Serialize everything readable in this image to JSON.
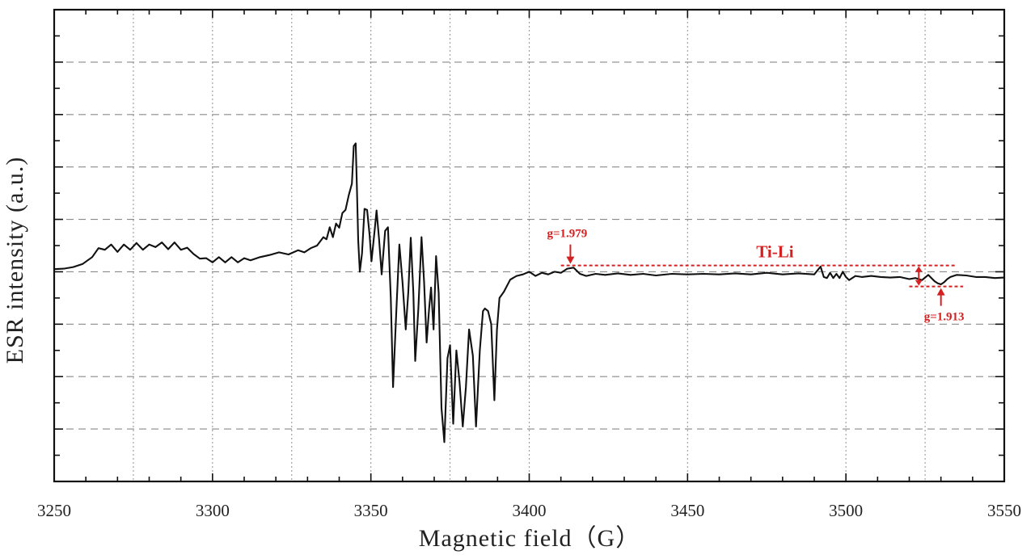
{
  "chart_data": {
    "type": "line",
    "xlabel": "Magnetic field（G）",
    "ylabel": "ESR intensity (a.u.)",
    "xlim": [
      3250,
      3550
    ],
    "ylim": [
      -4,
      5
    ],
    "xticks": [
      3250,
      3300,
      3350,
      3400,
      3450,
      3500,
      3550
    ],
    "x_minor_gridlines": [
      3275,
      3300,
      3325,
      3350,
      3375,
      3400,
      3450,
      3500,
      3525
    ],
    "y_dashed_gridlines": [
      -3,
      -2,
      -1,
      0,
      1,
      2,
      3,
      4
    ],
    "y_tick_labels_shown": false,
    "grid": true,
    "line_color": "#111111",
    "annotation_color": "#d42020",
    "series": [
      {
        "points": [
          [
            3250,
            0.05
          ],
          [
            3253,
            0.06
          ],
          [
            3256,
            0.09
          ],
          [
            3259,
            0.15
          ],
          [
            3262,
            0.28
          ],
          [
            3264,
            0.45
          ],
          [
            3266,
            0.42
          ],
          [
            3268,
            0.52
          ],
          [
            3270,
            0.38
          ],
          [
            3272,
            0.52
          ],
          [
            3274,
            0.42
          ],
          [
            3276,
            0.55
          ],
          [
            3278,
            0.42
          ],
          [
            3280,
            0.52
          ],
          [
            3282,
            0.47
          ],
          [
            3284,
            0.56
          ],
          [
            3286,
            0.43
          ],
          [
            3288,
            0.56
          ],
          [
            3290,
            0.42
          ],
          [
            3292,
            0.46
          ],
          [
            3294,
            0.34
          ],
          [
            3296,
            0.25
          ],
          [
            3298,
            0.26
          ],
          [
            3300,
            0.18
          ],
          [
            3302,
            0.28
          ],
          [
            3304,
            0.18
          ],
          [
            3306,
            0.28
          ],
          [
            3308,
            0.18
          ],
          [
            3310,
            0.26
          ],
          [
            3312,
            0.22
          ],
          [
            3315,
            0.28
          ],
          [
            3318,
            0.32
          ],
          [
            3321,
            0.37
          ],
          [
            3324,
            0.33
          ],
          [
            3327,
            0.41
          ],
          [
            3329,
            0.37
          ],
          [
            3331,
            0.45
          ],
          [
            3333,
            0.5
          ],
          [
            3335,
            0.66
          ],
          [
            3336,
            0.62
          ],
          [
            3337,
            0.85
          ],
          [
            3338,
            0.66
          ],
          [
            3339,
            0.92
          ],
          [
            3340,
            0.84
          ],
          [
            3341,
            1.12
          ],
          [
            3342,
            1.18
          ],
          [
            3343,
            1.46
          ],
          [
            3344,
            1.68
          ],
          [
            3344.6,
            2.4
          ],
          [
            3345.2,
            2.45
          ],
          [
            3345.6,
            1.6
          ],
          [
            3346,
            0.6
          ],
          [
            3346.5,
            0.0
          ],
          [
            3347.2,
            0.35
          ],
          [
            3348,
            1.2
          ],
          [
            3348.8,
            1.18
          ],
          [
            3349.6,
            0.7
          ],
          [
            3350.2,
            0.2
          ],
          [
            3351.2,
            0.8
          ],
          [
            3351.8,
            1.17
          ],
          [
            3352.6,
            0.62
          ],
          [
            3353.4,
            -0.05
          ],
          [
            3354.5,
            0.78
          ],
          [
            3355.4,
            0.85
          ],
          [
            3356.3,
            -0.5
          ],
          [
            3357,
            -2.2
          ],
          [
            3358,
            -0.8
          ],
          [
            3359,
            0.52
          ],
          [
            3360,
            -0.2
          ],
          [
            3361,
            -1.1
          ],
          [
            3361.8,
            -0.4
          ],
          [
            3362.6,
            0.65
          ],
          [
            3363.4,
            -0.4
          ],
          [
            3364,
            -1.7
          ],
          [
            3365,
            -0.7
          ],
          [
            3366,
            0.66
          ],
          [
            3366.8,
            -0.2
          ],
          [
            3367.6,
            -1.35
          ],
          [
            3368.4,
            -0.7
          ],
          [
            3369,
            -0.3
          ],
          [
            3369.8,
            -1.1
          ],
          [
            3370.6,
            0.3
          ],
          [
            3371.4,
            -0.4
          ],
          [
            3372.3,
            -2.6
          ],
          [
            3373.2,
            -3.25
          ],
          [
            3374.2,
            -1.65
          ],
          [
            3375,
            -1.4
          ],
          [
            3376,
            -2.9
          ],
          [
            3377,
            -1.5
          ],
          [
            3378,
            -2.1
          ],
          [
            3379,
            -2.95
          ],
          [
            3380,
            -2.2
          ],
          [
            3381,
            -1.1
          ],
          [
            3382.2,
            -1.6
          ],
          [
            3383.2,
            -2.95
          ],
          [
            3384.4,
            -1.5
          ],
          [
            3385.4,
            -0.75
          ],
          [
            3386,
            -0.7
          ],
          [
            3387,
            -0.75
          ],
          [
            3388,
            -1.0
          ],
          [
            3389,
            -2.45
          ],
          [
            3389.8,
            -1.1
          ],
          [
            3390.6,
            -0.5
          ],
          [
            3392,
            -0.38
          ],
          [
            3394,
            -0.15
          ],
          [
            3396,
            -0.08
          ],
          [
            3398,
            -0.05
          ],
          [
            3400,
            0.0
          ],
          [
            3402,
            -0.08
          ],
          [
            3404,
            -0.02
          ],
          [
            3406,
            -0.05
          ],
          [
            3408,
            0.0
          ],
          [
            3410,
            -0.02
          ],
          [
            3412,
            0.06
          ],
          [
            3414,
            0.08
          ],
          [
            3416,
            -0.04
          ],
          [
            3418,
            -0.08
          ],
          [
            3421,
            -0.04
          ],
          [
            3424,
            -0.06
          ],
          [
            3428,
            -0.03
          ],
          [
            3432,
            -0.06
          ],
          [
            3436,
            -0.04
          ],
          [
            3440,
            -0.07
          ],
          [
            3445,
            -0.04
          ],
          [
            3450,
            -0.05
          ],
          [
            3455,
            -0.04
          ],
          [
            3460,
            -0.05
          ],
          [
            3465,
            -0.03
          ],
          [
            3470,
            -0.05
          ],
          [
            3475,
            -0.02
          ],
          [
            3480,
            -0.05
          ],
          [
            3485,
            -0.03
          ],
          [
            3490,
            -0.05
          ],
          [
            3492,
            0.1
          ],
          [
            3493,
            -0.1
          ],
          [
            3494,
            -0.12
          ],
          [
            3495,
            -0.02
          ],
          [
            3496,
            -0.12
          ],
          [
            3497,
            -0.04
          ],
          [
            3498,
            -0.12
          ],
          [
            3499,
            0.0
          ],
          [
            3500,
            -0.1
          ],
          [
            3501,
            -0.16
          ],
          [
            3503,
            -0.08
          ],
          [
            3505,
            -0.1
          ],
          [
            3508,
            -0.08
          ],
          [
            3511,
            -0.1
          ],
          [
            3514,
            -0.11
          ],
          [
            3517,
            -0.1
          ],
          [
            3520,
            -0.14
          ],
          [
            3522,
            -0.12
          ],
          [
            3524,
            -0.16
          ],
          [
            3526,
            -0.06
          ],
          [
            3527,
            -0.12
          ],
          [
            3528,
            -0.18
          ],
          [
            3529,
            -0.22
          ],
          [
            3530,
            -0.24
          ],
          [
            3531,
            -0.2
          ],
          [
            3532,
            -0.14
          ],
          [
            3533,
            -0.1
          ],
          [
            3535,
            -0.06
          ],
          [
            3538,
            -0.07
          ],
          [
            3541,
            -0.1
          ],
          [
            3544,
            -0.1
          ],
          [
            3547,
            -0.12
          ],
          [
            3550,
            -0.11
          ]
        ]
      }
    ],
    "annotations": {
      "g_high_label": "g=1.979",
      "g_high_x": 3413,
      "g_low_label": "g=1.913",
      "g_low_x": 3530,
      "band_label": "Ti-Li",
      "band_x_range": [
        3410,
        3535
      ],
      "band_upper_y": 0.12,
      "band_lower_y": -0.28,
      "band_lower_x_range": [
        3520,
        3537
      ],
      "double_arrow_x": 3523
    }
  }
}
